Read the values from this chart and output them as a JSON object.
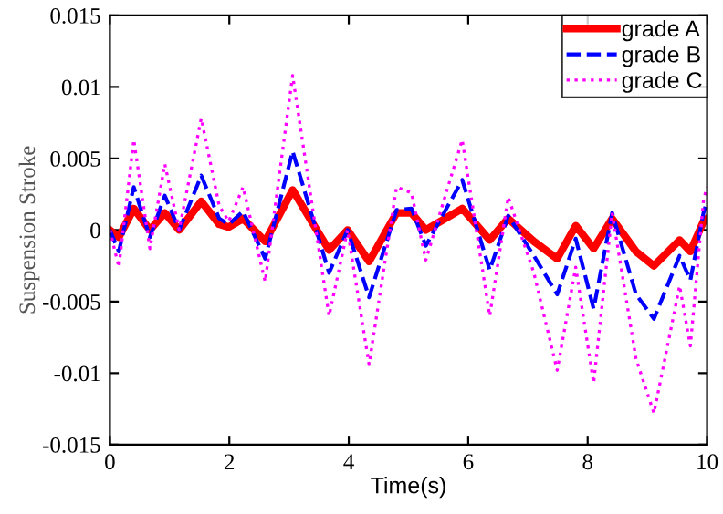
{
  "chart_data": {
    "type": "line",
    "xlabel": "Time(s)",
    "ylabel": "Suspension Stroke",
    "x": [
      0,
      0.15,
      0.4,
      0.67,
      0.92,
      1.16,
      1.53,
      1.83,
      1.99,
      2.23,
      2.6,
      3.06,
      3.42,
      3.67,
      3.98,
      4.34,
      4.8,
      5.05,
      5.29,
      5.9,
      6.36,
      6.67,
      7.1,
      7.49,
      7.8,
      8.1,
      8.41,
      8.81,
      9.11,
      9.54,
      9.72,
      9.94,
      10
    ],
    "series": [
      {
        "name": "grade A",
        "color": "#ff0000",
        "line_style": "solid",
        "values": [
          0,
          -0.0005,
          0.0015,
          0,
          0.0012,
          0,
          0.002,
          0.0004,
          0.0002,
          0.0008,
          -0.0008,
          0.0028,
          0.0003,
          -0.0014,
          0,
          -0.0022,
          0.0012,
          0.0012,
          0,
          0.0015,
          -0.0007,
          0.0008,
          -0.0008,
          -0.002,
          0.0003,
          -0.0013,
          0.0008,
          -0.0015,
          -0.0025,
          -0.0007,
          -0.0015,
          0.0006,
          0.0008
        ]
      },
      {
        "name": "grade B",
        "color": "#0000ff",
        "line_style": "dashed",
        "values": [
          0,
          -0.0015,
          0.003,
          -0.0005,
          0.0024,
          0,
          0.0038,
          0.0008,
          0.0004,
          0.0013,
          -0.002,
          0.0055,
          0.0005,
          -0.003,
          0,
          -0.0047,
          0.0014,
          0.0015,
          -0.0011,
          0.0035,
          -0.0028,
          0.001,
          -0.0018,
          -0.0045,
          -0.0006,
          -0.0055,
          0.0012,
          -0.0045,
          -0.0062,
          -0.0018,
          -0.0035,
          0.0012,
          0.002
        ]
      },
      {
        "name": "grade C",
        "color": "#ff00ff",
        "line_style": "dotted",
        "values": [
          0,
          -0.0026,
          0.0063,
          -0.0013,
          0.0046,
          0,
          0.0078,
          0.0017,
          0.0006,
          0.003,
          -0.0036,
          0.0108,
          0.0008,
          -0.006,
          0,
          -0.0094,
          0.003,
          0.0026,
          -0.0021,
          0.0063,
          -0.006,
          0.0023,
          -0.003,
          -0.0098,
          -0.0026,
          -0.0107,
          0.0012,
          -0.009,
          -0.0128,
          -0.0039,
          -0.0081,
          0.0021,
          0.003
        ]
      }
    ],
    "xlim": [
      0,
      10
    ],
    "xticks": [
      0,
      2,
      4,
      6,
      8,
      10
    ],
    "ylim": [
      -0.015,
      0.015
    ],
    "yticks": [
      -0.015,
      -0.01,
      -0.005,
      0,
      0.005,
      0.01,
      0.015
    ],
    "grid": false,
    "legend": "top right"
  }
}
